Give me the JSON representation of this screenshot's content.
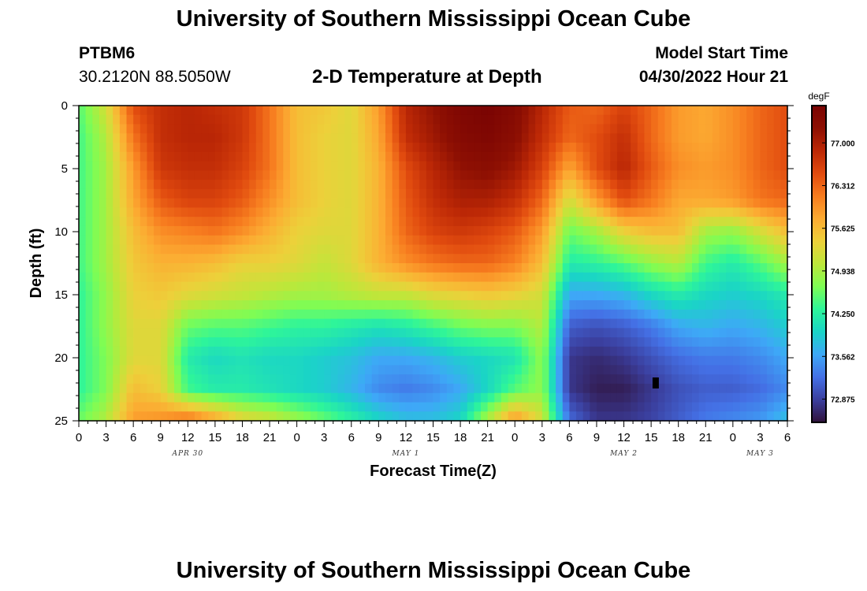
{
  "header": {
    "title": "University of Southern Mississippi Ocean Cube",
    "station": "PTBM6",
    "coords": "30.2120N  88.5050W",
    "subtitle": "2-D Temperature at Depth",
    "model_start_label": "Model Start Time",
    "model_start_value": "04/30/2022 Hour 21"
  },
  "footer": {
    "title": "University of Southern Mississippi Ocean Cube"
  },
  "chart_data": {
    "type": "heatmap",
    "title": "2-D Temperature at Depth",
    "xlabel": "Forecast Time(Z)",
    "ylabel": "Depth (ft)",
    "x_unit": "hours since 04/30 00Z",
    "xlim": [
      0,
      78
    ],
    "ylim": [
      0,
      25
    ],
    "x_tick_values": [
      0,
      3,
      6,
      9,
      12,
      15,
      18,
      21,
      24,
      27,
      30,
      33,
      36,
      39,
      42,
      45,
      48,
      51,
      54,
      57,
      60,
      63,
      66,
      69,
      72,
      75,
      78
    ],
    "x_tick_labels": [
      "0",
      "3",
      "6",
      "9",
      "12",
      "15",
      "18",
      "21",
      "0",
      "3",
      "6",
      "9",
      "12",
      "15",
      "18",
      "21",
      "0",
      "3",
      "6",
      "9",
      "12",
      "15",
      "18",
      "21",
      "0",
      "3",
      "6"
    ],
    "y_ticks": [
      0,
      5,
      10,
      15,
      20,
      25
    ],
    "y_tick_labels": [
      "0",
      "5",
      "10",
      "15",
      "20",
      "25"
    ],
    "date_labels": [
      {
        "text": "APR 30",
        "x": 12
      },
      {
        "text": "MAY 1",
        "x": 36
      },
      {
        "text": "MAY 2",
        "x": 60
      },
      {
        "text": "MAY 3",
        "x": 75
      }
    ],
    "colorbar": {
      "unit": "degF",
      "min": 72.5,
      "max": 77.6,
      "tick_values": [
        77.0,
        76.312,
        75.625,
        74.938,
        74.25,
        73.562,
        72.875
      ],
      "tick_labels": [
        "77.000",
        "76.312",
        "75.625",
        "74.938",
        "74.250",
        "73.562",
        "72.875"
      ],
      "colors": [
        "#30123b",
        "#3b3f9e",
        "#4470e5",
        "#3ea8f7",
        "#1ad4c7",
        "#2ef59a",
        "#7efd54",
        "#bde73a",
        "#edd03a",
        "#fcab32",
        "#f77c1f",
        "#e14b0f",
        "#bc2806",
        "#8e1003",
        "#7a0403"
      ]
    },
    "z_unit": "degF",
    "depth_levels": [
      0,
      2.5,
      5,
      7.5,
      10,
      12.5,
      15,
      17.5,
      20,
      22.5,
      25
    ],
    "time_hours": [
      0,
      3,
      6,
      9,
      12,
      15,
      18,
      21,
      24,
      27,
      30,
      33,
      36,
      39,
      42,
      45,
      48,
      51,
      54,
      57,
      60,
      63,
      66,
      69,
      72,
      75,
      78
    ],
    "temperature_degF": [
      [
        74.5,
        75.2,
        76.5,
        76.8,
        76.9,
        76.8,
        76.7,
        76.2,
        75.6,
        75.5,
        75.3,
        75.9,
        76.9,
        77.2,
        77.5,
        77.6,
        77.4,
        76.9,
        76.4,
        76.3,
        76.6,
        76.3,
        75.9,
        75.8,
        76.0,
        76.3,
        76.5
      ],
      [
        74.4,
        75.0,
        76.2,
        76.8,
        76.9,
        76.9,
        76.7,
        76.2,
        75.6,
        75.4,
        75.3,
        75.8,
        76.8,
        77.1,
        77.4,
        77.5,
        77.3,
        76.8,
        76.3,
        76.5,
        76.8,
        76.3,
        75.9,
        75.8,
        76.0,
        76.3,
        76.5
      ],
      [
        74.4,
        74.9,
        75.9,
        76.7,
        76.8,
        76.8,
        76.6,
        76.2,
        75.6,
        75.4,
        75.3,
        75.7,
        76.5,
        76.9,
        77.2,
        77.3,
        77.1,
        76.6,
        75.8,
        76.5,
        76.9,
        76.4,
        76.0,
        75.9,
        76.0,
        76.3,
        76.5
      ],
      [
        74.4,
        74.9,
        75.8,
        76.4,
        76.6,
        76.6,
        76.4,
        76.0,
        75.6,
        75.4,
        75.3,
        75.7,
        76.4,
        76.8,
        77.0,
        77.0,
        76.8,
        76.3,
        75.2,
        75.9,
        76.5,
        76.2,
        75.8,
        75.8,
        75.9,
        76.2,
        76.3
      ],
      [
        74.4,
        74.9,
        75.6,
        76.0,
        76.1,
        76.2,
        76.0,
        75.7,
        75.4,
        75.3,
        75.3,
        75.7,
        76.3,
        76.6,
        76.7,
        76.6,
        76.4,
        75.9,
        74.6,
        74.9,
        75.4,
        75.6,
        75.6,
        74.9,
        74.8,
        75.2,
        75.6
      ],
      [
        74.4,
        74.9,
        75.5,
        75.7,
        75.7,
        75.6,
        75.4,
        75.4,
        75.3,
        75.1,
        75.3,
        75.7,
        76.0,
        76.2,
        76.3,
        76.3,
        76.1,
        75.6,
        74.2,
        74.3,
        74.5,
        74.8,
        75.0,
        74.4,
        74.2,
        74.5,
        74.9
      ],
      [
        74.3,
        74.8,
        75.4,
        75.5,
        75.3,
        75.2,
        75.1,
        75.0,
        74.9,
        74.9,
        75.0,
        75.1,
        75.1,
        75.3,
        75.4,
        75.5,
        75.4,
        75.2,
        73.6,
        73.6,
        73.7,
        74.0,
        74.2,
        74.0,
        73.9,
        74.0,
        74.2
      ],
      [
        74.3,
        74.8,
        75.3,
        75.3,
        74.6,
        74.5,
        74.5,
        74.4,
        74.3,
        74.3,
        74.2,
        74.1,
        74.2,
        74.4,
        74.6,
        74.7,
        74.7,
        75.0,
        73.1,
        73.0,
        73.1,
        73.3,
        73.6,
        73.7,
        73.6,
        73.7,
        73.9
      ],
      [
        74.3,
        74.7,
        75.3,
        75.3,
        74.2,
        74.0,
        74.1,
        74.0,
        74.0,
        73.9,
        73.8,
        73.6,
        73.6,
        73.7,
        73.9,
        74.0,
        74.1,
        74.8,
        72.8,
        72.7,
        72.8,
        73.0,
        73.2,
        73.3,
        73.3,
        73.4,
        73.6
      ],
      [
        74.3,
        74.7,
        75.6,
        75.4,
        74.4,
        74.2,
        74.2,
        74.1,
        74.0,
        73.9,
        73.7,
        73.4,
        73.3,
        73.4,
        73.6,
        74.0,
        74.5,
        74.8,
        72.8,
        72.6,
        72.6,
        72.8,
        73.0,
        73.1,
        73.1,
        73.2,
        73.4
      ],
      [
        74.6,
        75.0,
        75.9,
        76.0,
        76.3,
        75.9,
        75.4,
        75.2,
        74.9,
        74.6,
        74.3,
        74.0,
        73.8,
        73.8,
        74.0,
        75.0,
        76.0,
        75.2,
        73.2,
        72.8,
        72.8,
        72.9,
        73.1,
        73.3,
        73.4,
        73.5,
        73.8
      ]
    ],
    "annotations": [
      {
        "type": "marker",
        "shape": "small black rectangle",
        "x_hours": 63.5,
        "depth_ft": 22
      }
    ]
  }
}
